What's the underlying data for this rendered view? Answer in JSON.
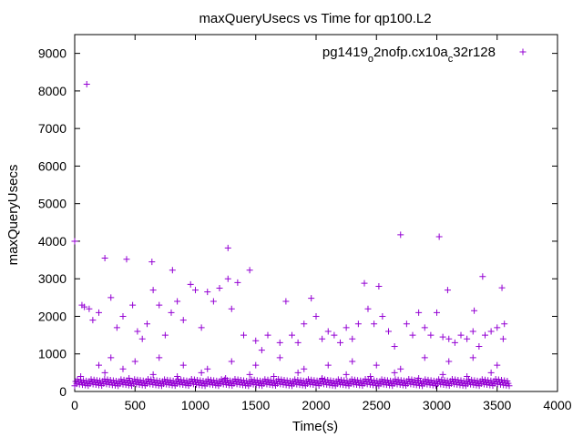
{
  "chart_data": {
    "type": "scatter",
    "title": "maxQueryUsecs vs Time for qp100.L2",
    "xlabel": "Time(s)",
    "ylabel": "maxQueryUsecs",
    "xlim": [
      0,
      4000
    ],
    "ylim": [
      0,
      9500
    ],
    "xticks": [
      0,
      500,
      1000,
      1500,
      2000,
      2500,
      3000,
      3500,
      4000
    ],
    "yticks": [
      0,
      1000,
      2000,
      3000,
      4000,
      5000,
      6000,
      7000,
      8000,
      9000
    ],
    "xtick_labels": [
      "0",
      "500",
      "1000",
      "1500",
      "2000",
      "2500",
      "3000",
      "3500",
      "4000"
    ],
    "ytick_labels": [
      "0",
      "1000",
      "2000",
      "3000",
      "4000",
      "5000",
      "6000",
      "7000",
      "8000",
      "9000"
    ],
    "grid": false,
    "legend_placement": "top-right",
    "marker": "plus",
    "series": [
      {
        "name": "pg1419_o2nofp.cx10a_c32r128",
        "name_parts": [
          {
            "text": "pg1419",
            "sub": false
          },
          {
            "text": "o",
            "sub": true
          },
          {
            "text": "2nofp.cx10a",
            "sub": false
          },
          {
            "text": "c",
            "sub": true
          },
          {
            "text": "32r128",
            "sub": false
          }
        ],
        "color": "#9400d3",
        "points": [
          [
            0,
            4000
          ],
          [
            100,
            8180
          ],
          [
            250,
            3550
          ],
          [
            430,
            3520
          ],
          [
            640,
            3450
          ],
          [
            810,
            3230
          ],
          [
            1270,
            3820
          ],
          [
            1270,
            3000
          ],
          [
            1450,
            3230
          ],
          [
            1960,
            2480
          ],
          [
            2400,
            2880
          ],
          [
            2520,
            2800
          ],
          [
            2700,
            4170
          ],
          [
            3020,
            4120
          ],
          [
            3090,
            2700
          ],
          [
            3310,
            2150
          ],
          [
            3380,
            3060
          ],
          [
            3540,
            2760
          ],
          [
            3560,
            1800
          ],
          [
            60,
            2300
          ],
          [
            80,
            2250
          ],
          [
            120,
            2200
          ],
          [
            150,
            1900
          ],
          [
            200,
            2100
          ],
          [
            300,
            2500
          ],
          [
            350,
            1700
          ],
          [
            400,
            2000
          ],
          [
            480,
            2300
          ],
          [
            520,
            1600
          ],
          [
            560,
            1400
          ],
          [
            600,
            1800
          ],
          [
            650,
            2700
          ],
          [
            700,
            2300
          ],
          [
            750,
            1500
          ],
          [
            800,
            2100
          ],
          [
            850,
            2400
          ],
          [
            900,
            1900
          ],
          [
            960,
            2850
          ],
          [
            1000,
            2700
          ],
          [
            1050,
            1700
          ],
          [
            1100,
            2650
          ],
          [
            1150,
            2400
          ],
          [
            1200,
            2750
          ],
          [
            1300,
            2200
          ],
          [
            1350,
            2900
          ],
          [
            1400,
            1500
          ],
          [
            1500,
            1350
          ],
          [
            1550,
            1100
          ],
          [
            1600,
            1500
          ],
          [
            1700,
            1300
          ],
          [
            1750,
            2400
          ],
          [
            1800,
            1500
          ],
          [
            1850,
            1300
          ],
          [
            1900,
            1800
          ],
          [
            2000,
            2000
          ],
          [
            2050,
            1400
          ],
          [
            2100,
            1600
          ],
          [
            2150,
            1500
          ],
          [
            2200,
            1300
          ],
          [
            2250,
            1700
          ],
          [
            2300,
            1400
          ],
          [
            2350,
            1800
          ],
          [
            2430,
            2200
          ],
          [
            2480,
            1800
          ],
          [
            2550,
            2000
          ],
          [
            2600,
            1600
          ],
          [
            2650,
            1200
          ],
          [
            2750,
            1800
          ],
          [
            2800,
            1500
          ],
          [
            2850,
            2100
          ],
          [
            2900,
            1700
          ],
          [
            2950,
            1500
          ],
          [
            3000,
            2100
          ],
          [
            3050,
            1450
          ],
          [
            3100,
            1400
          ],
          [
            3150,
            1300
          ],
          [
            3200,
            1500
          ],
          [
            3250,
            1400
          ],
          [
            3300,
            1600
          ],
          [
            3350,
            1200
          ],
          [
            3400,
            1500
          ],
          [
            3450,
            1600
          ],
          [
            3500,
            1700
          ],
          [
            3550,
            1400
          ],
          [
            200,
            700
          ],
          [
            300,
            900
          ],
          [
            400,
            600
          ],
          [
            500,
            800
          ],
          [
            700,
            900
          ],
          [
            900,
            700
          ],
          [
            1100,
            600
          ],
          [
            1300,
            800
          ],
          [
            1500,
            700
          ],
          [
            1700,
            900
          ],
          [
            1900,
            600
          ],
          [
            2100,
            700
          ],
          [
            2300,
            800
          ],
          [
            2500,
            700
          ],
          [
            2700,
            600
          ],
          [
            2900,
            900
          ],
          [
            3100,
            800
          ],
          [
            3300,
            900
          ],
          [
            3500,
            700
          ],
          [
            50,
            400
          ],
          [
            250,
            500
          ],
          [
            450,
            350
          ],
          [
            650,
            450
          ],
          [
            850,
            400
          ],
          [
            1050,
            500
          ],
          [
            1250,
            350
          ],
          [
            1450,
            450
          ],
          [
            1650,
            400
          ],
          [
            1850,
            500
          ],
          [
            2050,
            350
          ],
          [
            2250,
            450
          ],
          [
            2450,
            400
          ],
          [
            2650,
            500
          ],
          [
            2850,
            350
          ],
          [
            3050,
            450
          ],
          [
            3250,
            400
          ],
          [
            3450,
            500
          ]
        ]
      }
    ]
  }
}
